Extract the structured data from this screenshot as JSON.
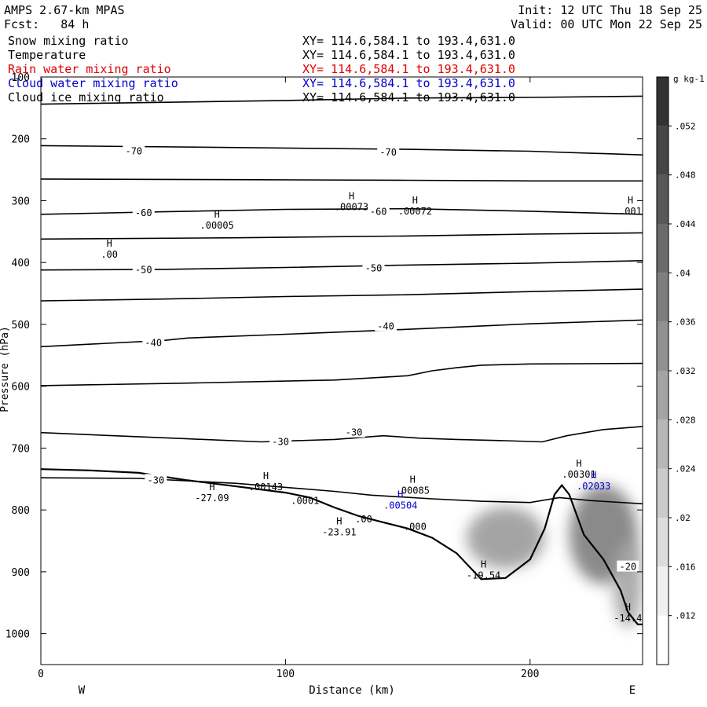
{
  "header": {
    "model": "AMPS 2.67-km MPAS",
    "forecast": "Fcst:   84 h",
    "init": "Init: 12 UTC Thu 18 Sep 25",
    "valid": "Valid: 00 UTC Mon 22 Sep 25"
  },
  "legend": [
    {
      "label": "Snow mixing ratio",
      "xy": "XY= 114.6,584.1 to 193.4,631.0",
      "color": "#000000"
    },
    {
      "label": "Temperature",
      "xy": "XY= 114.6,584.1 to 193.4,631.0",
      "color": "#000000"
    },
    {
      "label": "Rain water mixing ratio",
      "xy": "XY= 114.6,584.1 to 193.4,631.0",
      "color": "#e00000"
    },
    {
      "label": "Cloud water mixing ratio",
      "xy": "XY= 114.6,584.1 to 193.4,631.0",
      "color": "#0000cc"
    },
    {
      "label": "Cloud ice mixing ratio",
      "xy": "XY= 114.6,584.1 to 193.4,631.0",
      "color": "#000000"
    }
  ],
  "chart_data": {
    "type": "cross-section",
    "xlabel": "Distance (km)",
    "ylabel": "Pressure (hPa)",
    "xlim": [
      0,
      246
    ],
    "ylim": [
      1050,
      100
    ],
    "x_ticks": [
      0,
      100,
      200
    ],
    "y_ticks": [
      100,
      200,
      300,
      400,
      500,
      600,
      700,
      800,
      900,
      1000
    ],
    "west_label": "W",
    "east_label": "E",
    "colorbar": {
      "unit": "g kg-1",
      "levels": [
        0.012,
        0.016,
        0.02,
        0.024,
        0.028,
        0.032,
        0.036,
        0.04,
        0.044,
        0.048,
        0.052
      ],
      "tick_labels": [
        ".012",
        ".016",
        ".02",
        ".024",
        ".028",
        ".032",
        ".036",
        ".04",
        ".044",
        ".048",
        ".052"
      ]
    },
    "isotherms": [
      {
        "points": [
          [
            0,
            144
          ],
          [
            100,
            138
          ],
          [
            150,
            134
          ],
          [
            200,
            133
          ],
          [
            246,
            131
          ]
        ]
      },
      {
        "points": [
          [
            0,
            211
          ],
          [
            80,
            214
          ],
          [
            150,
            217
          ],
          [
            200,
            220
          ],
          [
            246,
            226
          ]
        ]
      },
      {
        "points": [
          [
            0,
            265
          ],
          [
            80,
            266
          ],
          [
            150,
            267
          ],
          [
            200,
            268
          ],
          [
            246,
            268
          ]
        ]
      },
      {
        "points": [
          [
            0,
            322
          ],
          [
            50,
            318
          ],
          [
            100,
            314
          ],
          [
            150,
            313
          ],
          [
            200,
            317
          ],
          [
            246,
            322
          ]
        ]
      },
      {
        "points": [
          [
            0,
            362
          ],
          [
            80,
            360
          ],
          [
            150,
            357
          ],
          [
            200,
            354
          ],
          [
            246,
            352
          ]
        ]
      },
      {
        "points": [
          [
            0,
            412
          ],
          [
            50,
            411
          ],
          [
            100,
            408
          ],
          [
            150,
            404
          ],
          [
            200,
            401
          ],
          [
            246,
            397
          ]
        ]
      },
      {
        "points": [
          [
            0,
            462
          ],
          [
            50,
            459
          ],
          [
            100,
            455
          ],
          [
            150,
            452
          ],
          [
            200,
            447
          ],
          [
            246,
            443
          ]
        ]
      },
      {
        "points": [
          [
            0,
            536
          ],
          [
            50,
            526
          ],
          [
            60,
            522
          ],
          [
            100,
            516
          ],
          [
            150,
            508
          ],
          [
            200,
            499
          ],
          [
            246,
            493
          ]
        ]
      },
      {
        "points": [
          [
            0,
            599
          ],
          [
            60,
            595
          ],
          [
            120,
            590
          ],
          [
            150,
            583
          ],
          [
            160,
            575
          ],
          [
            170,
            570
          ],
          [
            180,
            566
          ],
          [
            200,
            564
          ],
          [
            246,
            563
          ]
        ]
      },
      {
        "points": [
          [
            0,
            675
          ],
          [
            30,
            680
          ],
          [
            60,
            685
          ],
          [
            90,
            690
          ],
          [
            120,
            686
          ],
          [
            140,
            680
          ],
          [
            155,
            684
          ],
          [
            170,
            686
          ],
          [
            190,
            688
          ],
          [
            205,
            690
          ],
          [
            215,
            680
          ],
          [
            230,
            670
          ],
          [
            246,
            665
          ]
        ]
      },
      {
        "points": [
          [
            0,
            748
          ],
          [
            40,
            749
          ],
          [
            80,
            757
          ],
          [
            120,
            770
          ],
          [
            135,
            776
          ],
          [
            160,
            782
          ],
          [
            180,
            786
          ],
          [
            200,
            788
          ],
          [
            212,
            780
          ],
          [
            225,
            785
          ],
          [
            246,
            790
          ]
        ]
      }
    ],
    "isotherm_labels": [
      {
        "x": 38,
        "p": 220,
        "text": "-70"
      },
      {
        "x": 142,
        "p": 222,
        "text": "-70"
      },
      {
        "x": 42,
        "p": 320,
        "text": "-60"
      },
      {
        "x": 138,
        "p": 318,
        "text": "-60"
      },
      {
        "x": 42,
        "p": 412,
        "text": "-50"
      },
      {
        "x": 136,
        "p": 409,
        "text": "-50"
      },
      {
        "x": 46,
        "p": 530,
        "text": "-40"
      },
      {
        "x": 141,
        "p": 503,
        "text": "-40"
      },
      {
        "x": 98,
        "p": 690,
        "text": "-30"
      },
      {
        "x": 128,
        "p": 675,
        "text": "-30"
      },
      {
        "x": 47,
        "p": 752,
        "text": "-30"
      },
      {
        "x": 240,
        "p": 892,
        "text": "-20"
      }
    ],
    "terrain": [
      [
        0,
        734
      ],
      [
        20,
        736
      ],
      [
        40,
        740
      ],
      [
        60,
        752
      ],
      [
        80,
        762
      ],
      [
        100,
        772
      ],
      [
        110,
        780
      ],
      [
        120,
        796
      ],
      [
        130,
        810
      ],
      [
        140,
        820
      ],
      [
        150,
        830
      ],
      [
        160,
        845
      ],
      [
        170,
        870
      ],
      [
        180,
        912
      ],
      [
        190,
        910
      ],
      [
        200,
        880
      ],
      [
        206,
        830
      ],
      [
        210,
        775
      ],
      [
        213,
        760
      ],
      [
        216,
        775
      ],
      [
        222,
        840
      ],
      [
        230,
        880
      ],
      [
        237,
        930
      ],
      [
        240,
        965
      ],
      [
        244,
        985
      ],
      [
        246,
        985
      ]
    ],
    "highs": [
      {
        "x": 28,
        "p": 392,
        "text": ".00",
        "color": "#000000"
      },
      {
        "x": 72,
        "p": 345,
        "text": ".00005",
        "color": "#000000"
      },
      {
        "x": 127,
        "p": 315,
        "text": ".00073",
        "color": "#000000"
      },
      {
        "x": 153,
        "p": 322,
        "text": ".00072",
        "color": "#000000"
      },
      {
        "x": 241,
        "p": 322,
        "text": ".001",
        "color": "#000000"
      },
      {
        "x": 70,
        "p": 786,
        "text": "-27.09",
        "color": "#000000"
      },
      {
        "x": 92,
        "p": 768,
        "text": ".00143",
        "color": "#000000"
      },
      {
        "x": 152,
        "p": 774,
        "text": ".00085",
        "color": "#000000"
      },
      {
        "x": 147,
        "p": 798,
        "text": ".00504",
        "color": "#0000cc"
      },
      {
        "x": 122,
        "p": 841,
        "text": "-23.91",
        "color": "#000000"
      },
      {
        "x": 181,
        "p": 911,
        "text": "-19.54",
        "color": "#000000"
      },
      {
        "x": 220,
        "p": 748,
        "text": ".00301",
        "color": "#000000"
      },
      {
        "x": 226,
        "p": 767,
        "text": ".02033",
        "color": "#0000cc"
      },
      {
        "x": 240,
        "p": 980,
        "text": "-14.4",
        "color": "#000000"
      }
    ],
    "misc_labels": [
      {
        "x": 108,
        "p": 790,
        "text": ".0001",
        "color": "#000000"
      },
      {
        "x": 132,
        "p": 820,
        "text": ".00",
        "color": "#000000"
      },
      {
        "x": 153,
        "p": 832,
        "text": ".000",
        "color": "#000000"
      }
    ],
    "shaded": [
      {
        "x": 190,
        "p": 845,
        "rx": 16,
        "rp": 50,
        "value": 0.03
      },
      {
        "x": 230,
        "p": 840,
        "rx": 14,
        "rp": 80,
        "value": 0.036
      },
      {
        "x": 240,
        "p": 920,
        "rx": 6,
        "rp": 70,
        "value": 0.028
      }
    ]
  }
}
